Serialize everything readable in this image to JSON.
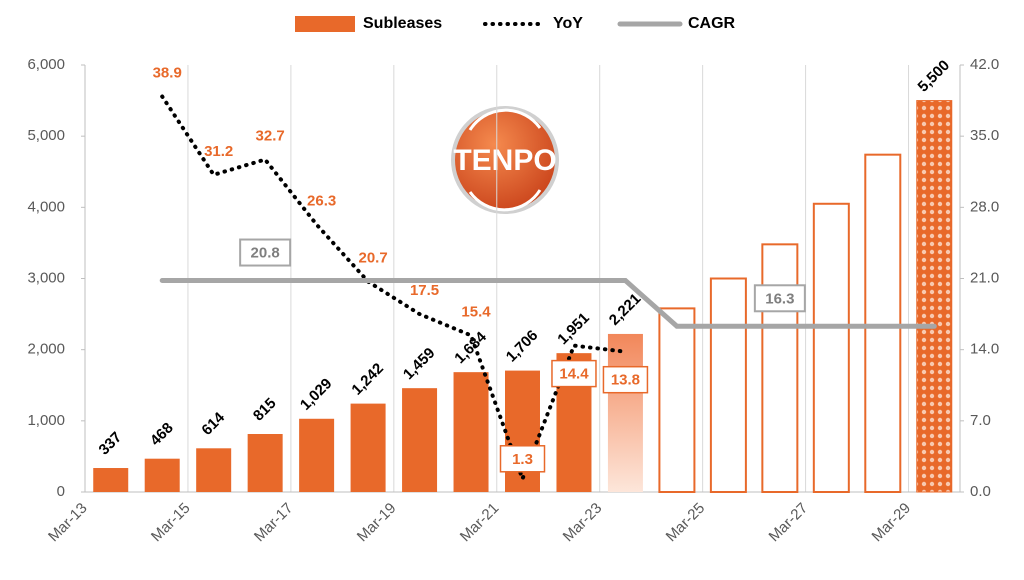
{
  "chart_data": {
    "type": "bar",
    "logo": "TENPO",
    "categories": [
      "Mar-13",
      null,
      "Mar-15",
      null,
      "Mar-17",
      null,
      "Mar-19",
      null,
      "Mar-21",
      null,
      "Mar-23",
      null,
      "Mar-25",
      null,
      "Mar-27",
      null,
      "Mar-29"
    ],
    "ylim": [
      0,
      6000
    ],
    "yticks": [
      0,
      {
        "value": 1000,
        "label": "1,000"
      },
      {
        "value": 2000,
        "label": "2,000"
      },
      {
        "value": 3000,
        "label": "3,000"
      },
      {
        "value": 4000,
        "label": "4,000"
      },
      {
        "value": 5000,
        "label": "5,000"
      },
      {
        "value": 6000,
        "label": "6,000"
      }
    ],
    "y2lim": [
      0,
      42
    ],
    "y2ticks": [
      {
        "value": 0,
        "label": "0.0"
      },
      {
        "value": 7,
        "label": "7.0"
      },
      {
        "value": 14,
        "label": "14.0"
      },
      {
        "value": 21,
        "label": "21.0"
      },
      {
        "value": 28,
        "label": "28.0"
      },
      {
        "value": 35,
        "label": "35.0"
      },
      {
        "value": 42,
        "label": "42.0"
      }
    ],
    "series": [
      {
        "name": "Subleases",
        "type": "bar",
        "color": "#E8692A",
        "values": [
          337,
          468,
          614,
          815,
          1029,
          1242,
          1459,
          1684,
          1706,
          1951,
          2221,
          2580,
          3000,
          3480,
          4050,
          4740,
          5500
        ],
        "value_labels": [
          "337",
          "468",
          "614",
          "815",
          "1,029",
          "1,242",
          "1,459",
          "1,684",
          "1,706",
          "1,951",
          "2,221",
          null,
          null,
          null,
          null,
          null,
          "5,500"
        ],
        "bar_styles": [
          "solid",
          "solid",
          "solid",
          "solid",
          "solid",
          "solid",
          "solid",
          "solid",
          "solid",
          "solid",
          "gradient",
          "outline",
          "outline",
          "outline",
          "outline",
          "outline",
          "pattern"
        ]
      },
      {
        "name": "YoY",
        "type": "line",
        "axis": "y2",
        "color": "#000000",
        "values": [
          null,
          38.9,
          31.2,
          32.7,
          26.3,
          20.7,
          17.5,
          15.4,
          1.3,
          14.4,
          13.8,
          null,
          null,
          null,
          null,
          null,
          null
        ],
        "boxed_labels": [
          8,
          9,
          10
        ]
      },
      {
        "name": "CAGR",
        "type": "line",
        "axis": "y2",
        "color": "#A6A6A6",
        "values": [
          null,
          20.8,
          20.8,
          20.8,
          20.8,
          20.8,
          20.8,
          20.8,
          20.8,
          20.8,
          20.8,
          16.3,
          16.3,
          16.3,
          16.3,
          16.3,
          16.3
        ],
        "label_points": [
          3,
          13
        ]
      }
    ]
  }
}
